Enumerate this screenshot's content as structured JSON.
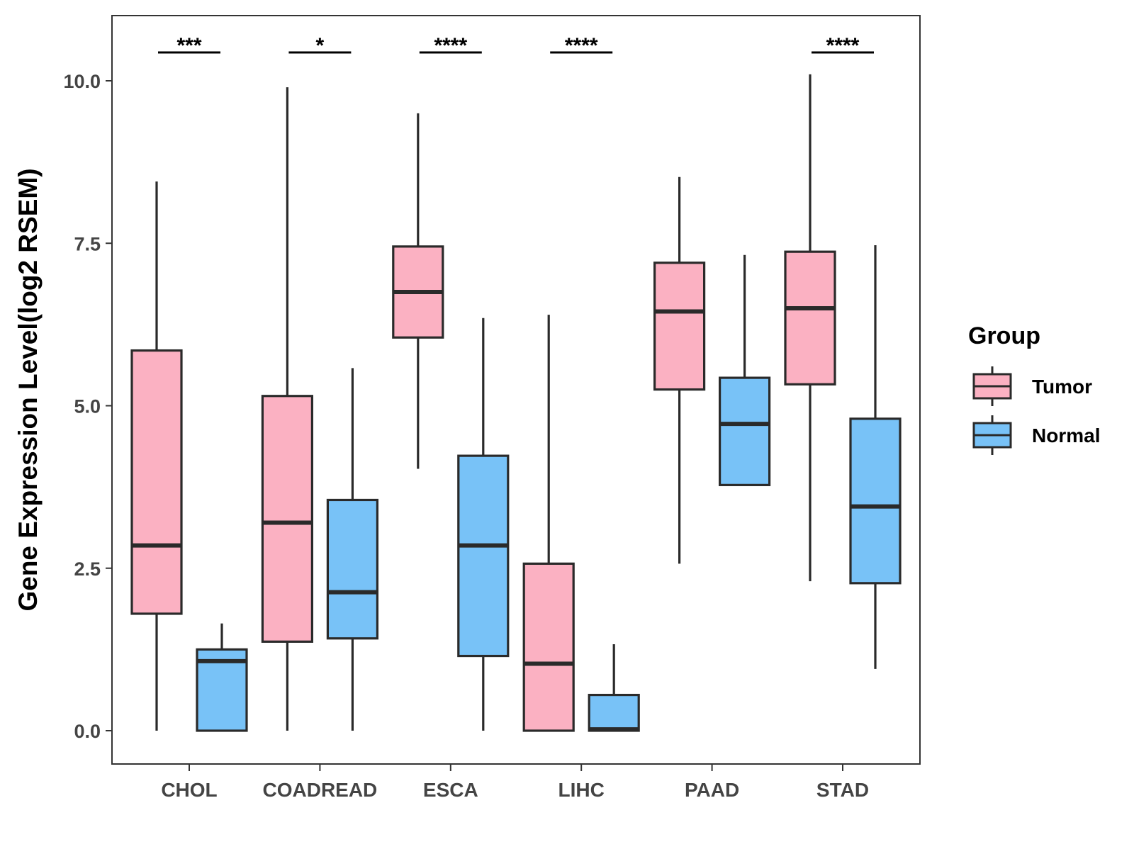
{
  "chart_data": {
    "type": "boxplot",
    "title": "",
    "xlabel": "",
    "ylabel": "Gene Expression Level(log2 RSEM)",
    "ylim": [
      -0.5,
      11.0
    ],
    "yticks": [
      0.0,
      2.5,
      5.0,
      7.5,
      10.0
    ],
    "ytick_labels": [
      "0.0",
      "2.5",
      "5.0",
      "7.5",
      "10.0"
    ],
    "grid": false,
    "categories": [
      "CHOL",
      "COADREAD",
      "ESCA",
      "LIHC",
      "PAAD",
      "STAD"
    ],
    "legend": {
      "title": "Group",
      "position": "right",
      "entries": [
        "Tumor",
        "Normal"
      ]
    },
    "colors": {
      "Tumor": "#FBB1C2",
      "Normal": "#78C2F7",
      "outline": "#2a2a2a"
    },
    "series": [
      {
        "name": "Tumor",
        "boxes": [
          {
            "min": 0.0,
            "q1": 1.8,
            "median": 2.85,
            "q3": 5.85,
            "max": 8.45
          },
          {
            "min": 0.0,
            "q1": 1.37,
            "median": 3.2,
            "q3": 5.15,
            "max": 9.9
          },
          {
            "min": 4.03,
            "q1": 6.05,
            "median": 6.75,
            "q3": 7.45,
            "max": 9.5
          },
          {
            "min": 0.0,
            "q1": 0.0,
            "median": 1.03,
            "q3": 2.57,
            "max": 6.4
          },
          {
            "min": 2.57,
            "q1": 5.25,
            "median": 6.45,
            "q3": 7.2,
            "max": 8.52
          },
          {
            "min": 2.3,
            "q1": 5.33,
            "median": 6.5,
            "q3": 7.37,
            "max": 10.1
          }
        ]
      },
      {
        "name": "Normal",
        "boxes": [
          {
            "min": 0.0,
            "q1": 0.0,
            "median": 1.07,
            "q3": 1.25,
            "max": 1.65
          },
          {
            "min": 0.0,
            "q1": 1.42,
            "median": 2.13,
            "q3": 3.55,
            "max": 5.58
          },
          {
            "min": 0.0,
            "q1": 1.15,
            "median": 2.85,
            "q3": 4.23,
            "max": 6.35
          },
          {
            "min": 0.0,
            "q1": 0.0,
            "median": 0.02,
            "q3": 0.55,
            "max": 1.33
          },
          {
            "min": 3.78,
            "q1": 3.78,
            "median": 4.72,
            "q3": 5.43,
            "max": 7.32
          },
          {
            "min": 0.95,
            "q1": 2.27,
            "median": 3.45,
            "q3": 4.8,
            "max": 7.47
          }
        ]
      }
    ],
    "annotations": [
      {
        "category": "CHOL",
        "text": "***"
      },
      {
        "category": "COADREAD",
        "text": "*"
      },
      {
        "category": "ESCA",
        "text": "****"
      },
      {
        "category": "LIHC",
        "text": "****"
      },
      {
        "category": "STAD",
        "text": "****"
      }
    ]
  }
}
